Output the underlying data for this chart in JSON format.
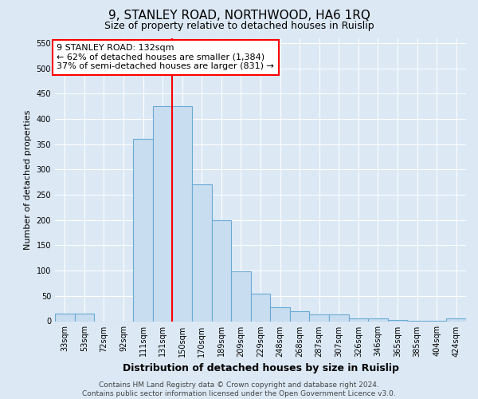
{
  "title": "9, STANLEY ROAD, NORTHWOOD, HA6 1RQ",
  "subtitle": "Size of property relative to detached houses in Ruislip",
  "xlabel": "Distribution of detached houses by size in Ruislip",
  "ylabel": "Number of detached properties",
  "footnote": "Contains HM Land Registry data © Crown copyright and database right 2024.\nContains public sector information licensed under the Open Government Licence v3.0.",
  "categories": [
    "33sqm",
    "53sqm",
    "72sqm",
    "92sqm",
    "111sqm",
    "131sqm",
    "150sqm",
    "170sqm",
    "189sqm",
    "209sqm",
    "229sqm",
    "248sqm",
    "268sqm",
    "287sqm",
    "307sqm",
    "326sqm",
    "346sqm",
    "365sqm",
    "385sqm",
    "404sqm",
    "424sqm"
  ],
  "values": [
    15,
    15,
    0,
    0,
    360,
    425,
    425,
    270,
    200,
    98,
    55,
    28,
    20,
    13,
    13,
    5,
    5,
    3,
    1,
    1,
    5
  ],
  "bar_color": "#c8ddf0",
  "bar_edge_color": "#6aaad4",
  "bar_linewidth": 0.8,
  "vline_color": "red",
  "vline_linewidth": 1.5,
  "vline_index": 5,
  "annotation_text": "9 STANLEY ROAD: 132sqm\n← 62% of detached houses are smaller (1,384)\n37% of semi-detached houses are larger (831) →",
  "annotation_box_facecolor": "white",
  "annotation_box_edgecolor": "red",
  "annotation_fontsize": 8,
  "ylim": [
    0,
    560
  ],
  "yticks": [
    0,
    50,
    100,
    150,
    200,
    250,
    300,
    350,
    400,
    450,
    500,
    550
  ],
  "bg_color": "#dce9f5",
  "title_fontsize": 11,
  "subtitle_fontsize": 9,
  "xlabel_fontsize": 9,
  "xlabel_fontweight": "bold",
  "ylabel_fontsize": 8,
  "tick_fontsize": 7,
  "footnote_fontsize": 6.5,
  "footnote_color": "#444444"
}
